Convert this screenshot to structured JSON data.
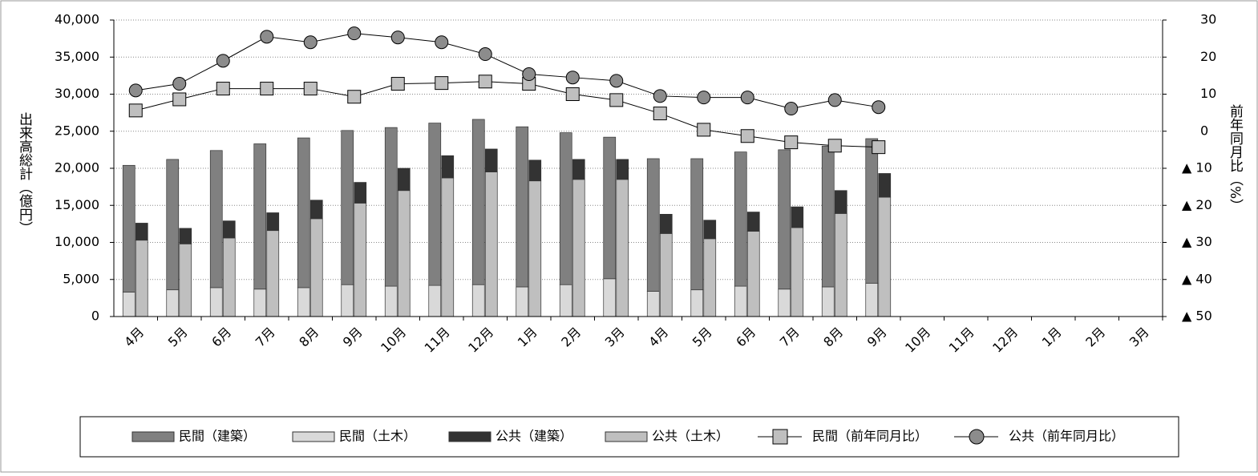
{
  "chart_data": {
    "type": "bar",
    "categories": [
      "4月",
      "5月",
      "6月",
      "7月",
      "8月",
      "9月",
      "10月",
      "11月",
      "12月",
      "1月",
      "2月",
      "3月",
      "4月",
      "5月",
      "6月",
      "7月",
      "8月",
      "9月",
      "10月",
      "11月",
      "12月",
      "1月",
      "2月",
      "3月"
    ],
    "y_label": "出来高総計（億円）",
    "y2_label": "前年同月比（%）",
    "ylim": [
      0,
      40000
    ],
    "yticks": [
      0,
      {
        "value": 5000,
        "label": "5,000"
      },
      {
        "value": 10000,
        "label": "10,000"
      },
      {
        "value": 15000,
        "label": "15,000"
      },
      {
        "value": 20000,
        "label": "20,000"
      },
      {
        "value": 25000,
        "label": "25,000"
      },
      {
        "value": 30000,
        "label": "30,000"
      },
      {
        "value": 35000,
        "label": "35,000"
      },
      {
        "value": 40000,
        "label": "40,000"
      }
    ],
    "y2lim": [
      -50,
      30
    ],
    "y2ticks": [
      {
        "value": -50,
        "label": "▲ 50"
      },
      {
        "value": -40,
        "label": "▲ 40"
      },
      {
        "value": -30,
        "label": "▲ 30"
      },
      {
        "value": -20,
        "label": "▲ 20"
      },
      {
        "value": -10,
        "label": "▲ 10"
      },
      0,
      10,
      20,
      30
    ],
    "grid": true,
    "series": [
      {
        "name": "民間（建築）",
        "type": "bar",
        "color": "#808080",
        "values": [
          17100,
          17600,
          18500,
          19600,
          20200,
          20800,
          21400,
          21900,
          22300,
          21600,
          20500,
          19100,
          17900,
          17700,
          18100,
          18800,
          19000,
          19500,
          null,
          null,
          null,
          null,
          null,
          null
        ]
      },
      {
        "name": "民間（土木）",
        "type": "bar",
        "color": "#d9d9d9",
        "values": [
          3300,
          3600,
          3900,
          3700,
          3900,
          4300,
          4100,
          4200,
          4300,
          4000,
          4300,
          5100,
          3400,
          3600,
          4100,
          3700,
          4000,
          4500,
          null,
          null,
          null,
          null,
          null,
          null
        ]
      },
      {
        "name": "公共（建築）",
        "type": "bar",
        "color": "#333333",
        "values": [
          2300,
          2100,
          2300,
          2400,
          2500,
          2800,
          3000,
          3000,
          3100,
          2800,
          2700,
          2700,
          2600,
          2500,
          2600,
          2800,
          3100,
          3200,
          null,
          null,
          null,
          null,
          null,
          null
        ]
      },
      {
        "name": "公共（土木）",
        "type": "bar",
        "color": "#bfbfbf",
        "values": [
          10300,
          9800,
          10600,
          11600,
          13200,
          15300,
          17000,
          18700,
          19500,
          18300,
          18500,
          18500,
          11200,
          10500,
          11500,
          12000,
          13900,
          16100,
          null,
          null,
          null,
          null,
          null,
          null
        ]
      },
      {
        "name": "民間（前年同月比）",
        "type": "line",
        "marker": "square",
        "axis": "y2",
        "color": "#bfbfbf",
        "values": [
          5.6,
          8.6,
          11.5,
          11.5,
          11.5,
          9.3,
          12.8,
          13,
          13.4,
          12.8,
          10,
          8.4,
          4.8,
          0.4,
          -1.3,
          -3,
          -3.9,
          -4.3,
          null,
          null,
          null,
          null,
          null,
          null
        ]
      },
      {
        "name": "公共（前年同月比）",
        "type": "line",
        "marker": "circle",
        "axis": "y2",
        "color": "#8c8c8c",
        "values": [
          11,
          12.8,
          19,
          25.5,
          24,
          26.4,
          25.3,
          24,
          20.8,
          15.4,
          14.5,
          13.6,
          9.5,
          9.1,
          9.1,
          6.1,
          8.4,
          6.5,
          null,
          null,
          null,
          null,
          null,
          null
        ]
      }
    ]
  }
}
